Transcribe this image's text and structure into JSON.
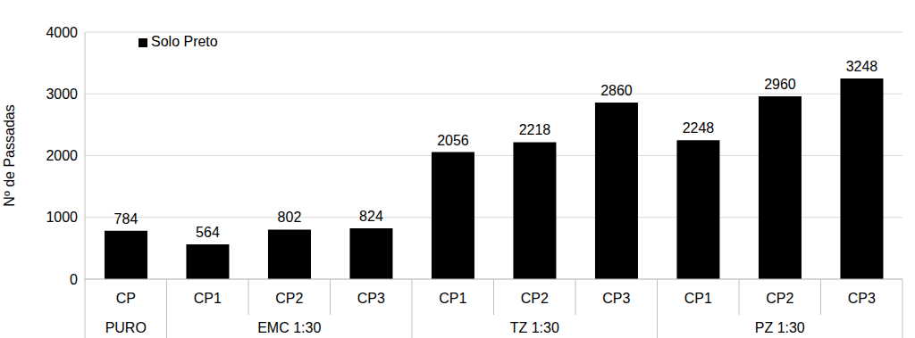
{
  "chart_data": {
    "type": "bar",
    "y_label": "Nº de Passadas",
    "categories": [
      "CP",
      "CP1",
      "CP2",
      "CP3",
      "CP1",
      "CP2",
      "CP3",
      "CP1",
      "CP2",
      "CP3"
    ],
    "category_groups": [
      "PURO",
      "EMC 1:30",
      "EMC 1:30",
      "EMC 1:30",
      "TZ 1:30",
      "TZ 1:30",
      "TZ 1:30",
      "PZ 1:30",
      "PZ 1:30",
      "PZ 1:30"
    ],
    "series": [
      {
        "name": "Solo Preto",
        "color": "#000000",
        "values": [
          784,
          564,
          802,
          824,
          2056,
          2218,
          2860,
          2248,
          2960,
          3248
        ]
      }
    ],
    "ylim": [
      0,
      4000
    ],
    "yticks": [
      0,
      1000,
      2000,
      3000,
      4000
    ],
    "grid": true,
    "legend": "top-left",
    "data_labels": true
  }
}
